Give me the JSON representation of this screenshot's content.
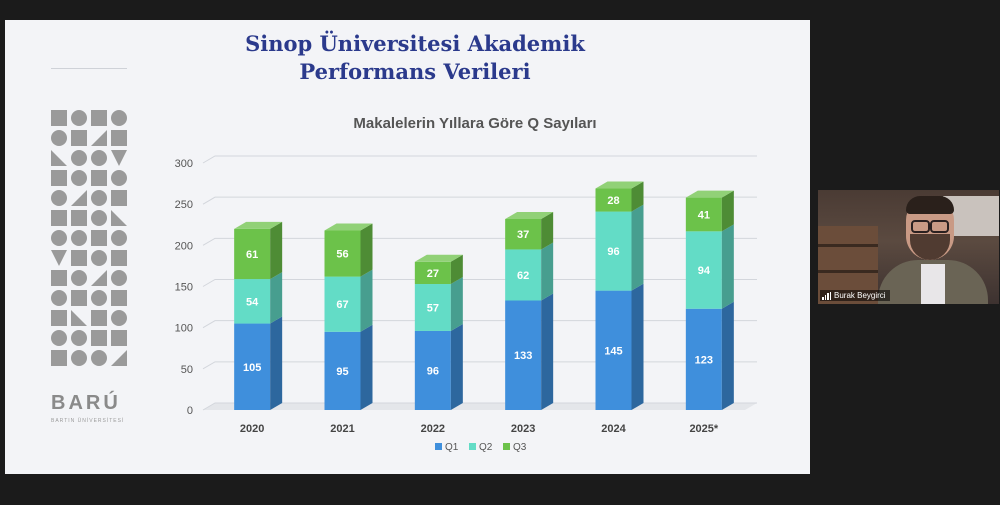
{
  "slide": {
    "title_line1": "Sinop Üniversitesi Akademik",
    "title_line2": "Performans Verileri",
    "logo_text": "BARÚ",
    "logo_subtext": "BARTIN ÜNİVERSİTESİ"
  },
  "chart_data": {
    "type": "bar",
    "stacked": true,
    "title": "Makalelerin Yıllara Göre Q Sayıları",
    "categories": [
      "2020",
      "2021",
      "2022",
      "2023",
      "2024",
      "2025*"
    ],
    "series": [
      {
        "name": "Q1",
        "values": [
          105,
          95,
          96,
          133,
          145,
          123
        ],
        "color": "#3f8fdc"
      },
      {
        "name": "Q2",
        "values": [
          54,
          67,
          57,
          62,
          96,
          94
        ],
        "color": "#63dcc6"
      },
      {
        "name": "Q3",
        "values": [
          61,
          56,
          27,
          37,
          28,
          41
        ],
        "color": "#6cc24a"
      }
    ],
    "ylim": [
      0,
      300
    ],
    "yticks": [
      0,
      50,
      100,
      150,
      200,
      250,
      300
    ],
    "grid": true,
    "legend": "bottom"
  },
  "video": {
    "participant_name": "Burak Beygirci"
  }
}
